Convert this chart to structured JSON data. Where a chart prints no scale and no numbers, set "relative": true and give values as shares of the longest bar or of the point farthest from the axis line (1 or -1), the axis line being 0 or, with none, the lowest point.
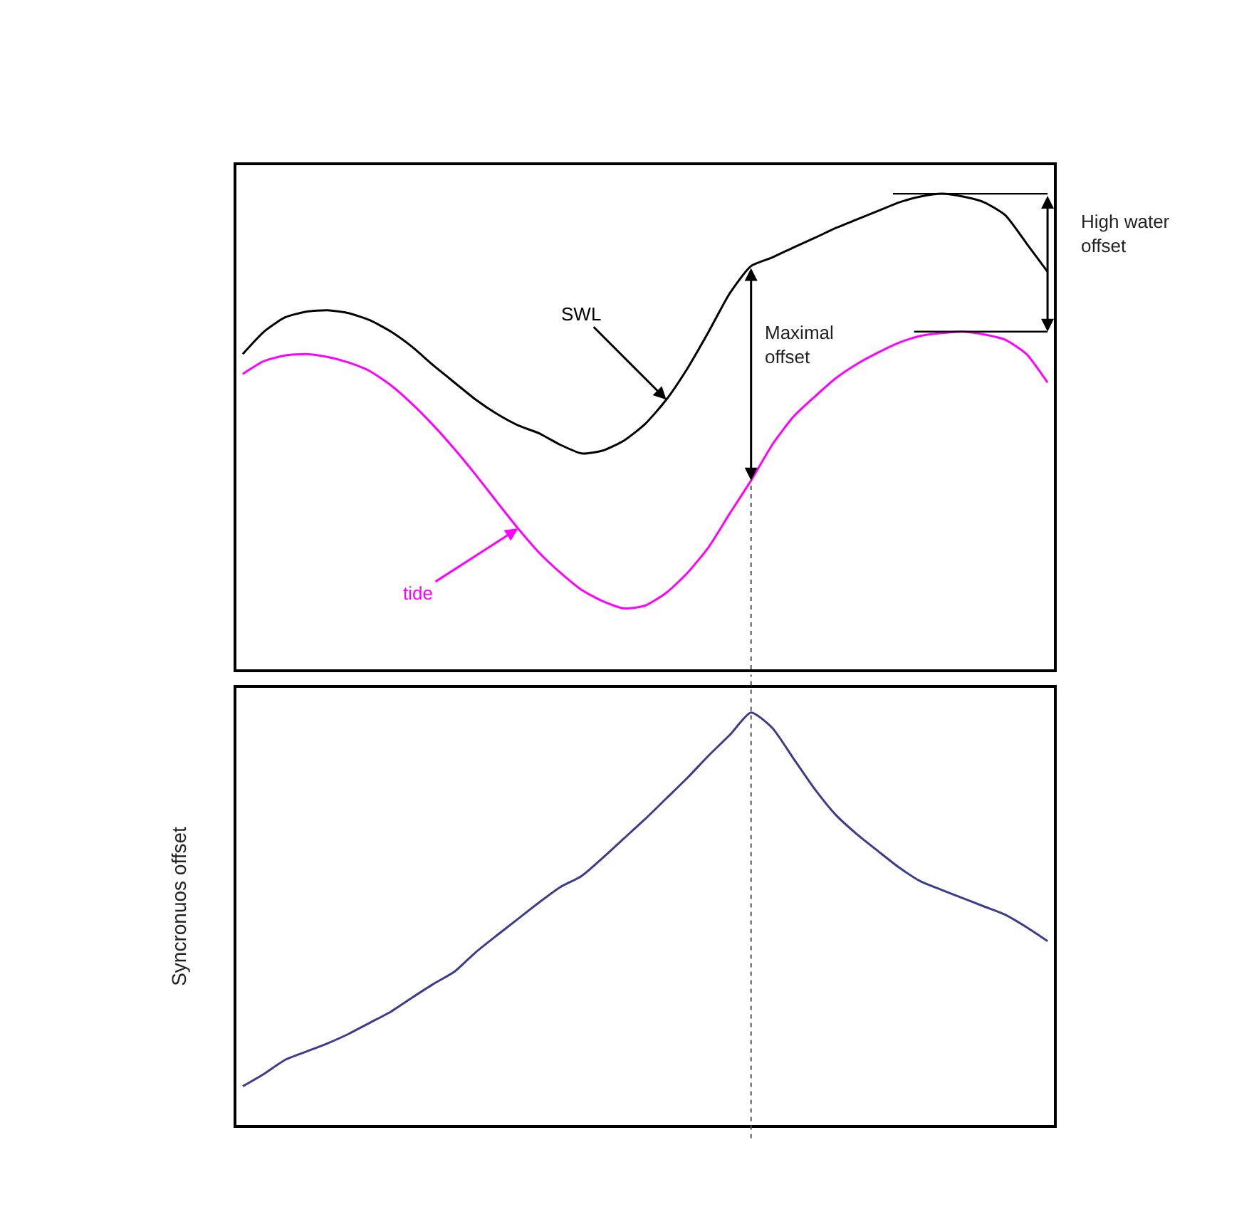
{
  "chart_data": [
    {
      "type": "line",
      "relative": true,
      "categories": [
        null,
        null,
        null,
        null,
        null,
        null,
        null,
        null,
        null,
        null,
        null,
        null,
        null,
        null,
        null,
        null,
        null,
        null,
        null,
        null,
        null,
        null,
        null,
        null,
        null,
        null,
        null,
        null,
        null,
        null,
        null,
        null,
        null,
        null,
        null,
        null,
        null,
        null,
        null
      ],
      "series": [
        {
          "name": "SWL",
          "color": "#000000",
          "values": [
            0.663,
            0.71,
            0.74,
            0.752,
            0.755,
            0.749,
            0.734,
            0.71,
            0.678,
            0.639,
            0.603,
            0.567,
            0.537,
            0.513,
            0.496,
            0.472,
            0.454,
            0.46,
            0.481,
            0.516,
            0.567,
            0.633,
            0.71,
            0.791,
            0.848,
            0.866,
            0.887,
            0.907,
            0.928,
            0.946,
            0.964,
            0.982,
            0.994,
            1.0,
            0.994,
            0.982,
            0.955,
            0.896,
            0.836
          ]
        },
        {
          "name": "tide",
          "color": "#ff00ff",
          "values": [
            0.621,
            0.648,
            0.66,
            0.663,
            0.657,
            0.645,
            0.627,
            0.597,
            0.558,
            0.513,
            0.463,
            0.409,
            0.352,
            0.296,
            0.245,
            0.203,
            0.167,
            0.143,
            0.128,
            0.134,
            0.161,
            0.203,
            0.257,
            0.328,
            0.397,
            0.472,
            0.531,
            0.573,
            0.612,
            0.642,
            0.666,
            0.687,
            0.701,
            0.707,
            0.71,
            0.704,
            0.693,
            0.663,
            0.603
          ]
        }
      ],
      "annotations": [
        "Maximal offset",
        "High water offset"
      ]
    },
    {
      "type": "line",
      "relative": true,
      "ylabel": "Syncronuos offset",
      "categories": [
        null,
        null,
        null,
        null,
        null,
        null,
        null,
        null,
        null,
        null,
        null,
        null,
        null,
        null,
        null,
        null,
        null,
        null,
        null,
        null,
        null,
        null,
        null,
        null,
        null,
        null,
        null,
        null,
        null,
        null,
        null,
        null,
        null,
        null,
        null,
        null,
        null,
        null,
        null
      ],
      "color": "#3c3c8c",
      "values": [
        0.094,
        0.124,
        0.158,
        0.178,
        0.198,
        0.221,
        0.248,
        0.275,
        0.309,
        0.342,
        0.372,
        0.419,
        0.46,
        0.5,
        0.54,
        0.577,
        0.604,
        0.648,
        0.695,
        0.742,
        0.792,
        0.842,
        0.896,
        0.946,
        1.0,
        0.963,
        0.889,
        0.815,
        0.752,
        0.705,
        0.664,
        0.624,
        0.591,
        0.57,
        0.55,
        0.53,
        0.51,
        0.48,
        0.446
      ]
    }
  ]
}
